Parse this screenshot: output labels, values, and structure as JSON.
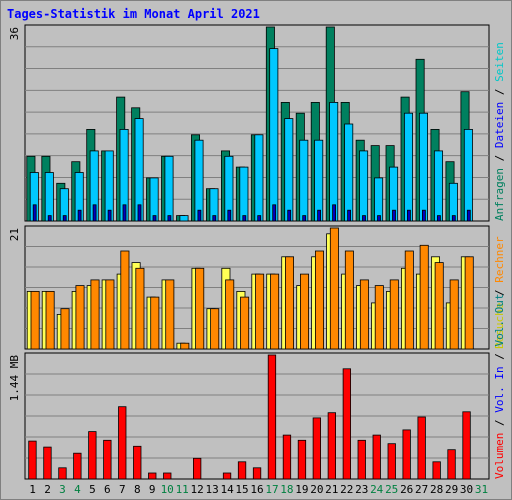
{
  "chart_data": {
    "type": "bar",
    "title": "Tages-Statistik im Monat April 2021",
    "colors": {
      "background": "#c0c0c0",
      "panel": "#c0c0c0",
      "grid": "#808080",
      "anfragen": "#00805f",
      "dateien": "#00c8ff",
      "seiten": "#00c8ff",
      "besuche": "#ffff55",
      "rechner": "#ff8800",
      "volumen": "#ff0000",
      "vol_in": "#0000ff",
      "vol_out": "#008080",
      "title": "#0000ff",
      "weekend": "#008040"
    },
    "days": [
      "1",
      "2",
      "3",
      "4",
      "5",
      "6",
      "7",
      "8",
      "9",
      "10",
      "11",
      "12",
      "13",
      "14",
      "15",
      "16",
      "17",
      "18",
      "19",
      "20",
      "21",
      "22",
      "23",
      "24",
      "25",
      "26",
      "27",
      "28",
      "29",
      "30",
      "31"
    ],
    "weekend_days": [
      "3",
      "4",
      "10",
      "11",
      "17",
      "18",
      "24",
      "25",
      "31"
    ],
    "panels": [
      {
        "id": "hits",
        "ymax_label": "36",
        "ymax": 36,
        "side_label": "Anfragen / Dateien / Seiten",
        "series": [
          {
            "name": "Anfragen",
            "values": [
              12,
              12,
              7,
              11,
              17,
              13,
              23,
              21,
              8,
              12,
              1,
              16,
              6,
              13,
              10,
              16,
              36,
              22,
              20,
              22,
              36,
              22,
              15,
              14,
              14,
              23,
              30,
              17,
              11,
              24,
              0
            ]
          },
          {
            "name": "Dateien",
            "values": [
              9,
              9,
              6,
              9,
              13,
              13,
              17,
              19,
              8,
              12,
              1,
              15,
              6,
              12,
              10,
              16,
              32,
              19,
              15,
              15,
              22,
              18,
              13,
              8,
              10,
              20,
              20,
              13,
              7,
              17,
              0
            ]
          },
          {
            "name": "Seiten",
            "values": [
              3,
              1,
              1,
              2,
              3,
              2,
              3,
              3,
              1,
              1,
              0,
              2,
              1,
              2,
              1,
              1,
              3,
              2,
              1,
              2,
              3,
              2,
              1,
              1,
              2,
              2,
              2,
              1,
              1,
              2,
              0
            ]
          }
        ]
      },
      {
        "id": "visits",
        "ymax_label": "21",
        "ymax": 21,
        "side_label": "Besuche / Rechner",
        "series": [
          {
            "name": "Besuche",
            "values": [
              10,
              10,
              6,
              10,
              11,
              12,
              13,
              15,
              9,
              12,
              1,
              14,
              7,
              14,
              10,
              13,
              13,
              16,
              11,
              16,
              20,
              13,
              11,
              8,
              10,
              14,
              13,
              16,
              8,
              16,
              0
            ]
          },
          {
            "name": "Rechner",
            "values": [
              10,
              10,
              7,
              11,
              12,
              12,
              17,
              14,
              9,
              12,
              1,
              14,
              7,
              12,
              9,
              13,
              13,
              16,
              13,
              17,
              21,
              17,
              12,
              11,
              12,
              17,
              18,
              15,
              12,
              16,
              0
            ]
          }
        ]
      },
      {
        "id": "volume",
        "ymax_label": "1.44 MB",
        "ymax": 1.44,
        "side_label": "Volumen / Vol. In / Vol. Out",
        "series": [
          {
            "name": "Volumen",
            "values": [
              0.44,
              0.37,
              0.13,
              0.3,
              0.55,
              0.45,
              0.84,
              0.38,
              0.07,
              0.07,
              0,
              0.24,
              0,
              0.07,
              0.2,
              0.13,
              1.44,
              0.51,
              0.45,
              0.71,
              0.77,
              1.28,
              0.45,
              0.51,
              0.41,
              0.57,
              0.72,
              0.2,
              0.34,
              0.78,
              0
            ]
          }
        ]
      }
    ]
  }
}
